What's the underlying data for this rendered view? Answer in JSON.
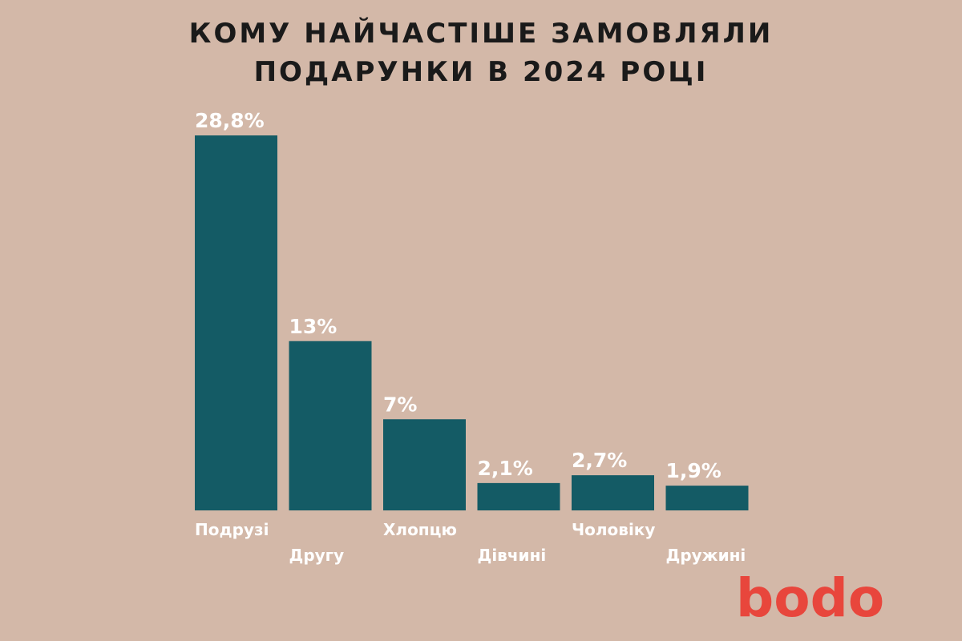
{
  "title_lines": [
    "КОМУ НАЙЧАСТІШЕ ЗАМОВЛЯЛИ",
    "ПОДАРУНКИ В 2024 РОЦІ"
  ],
  "logo": "bodo",
  "colors": {
    "background": "#d3b8a8",
    "bar": "#145b65",
    "label_text": "#ffffff",
    "title_text": "#1a1a1a",
    "logo": "#e8463c"
  },
  "chart_data": {
    "type": "bar",
    "title": "КОМУ НАЙЧАСТІШЕ ЗАМОВЛЯЛИ ПОДАРУНКИ В 2024 РОЦІ",
    "categories": [
      "Подрузі",
      "Другу",
      "Хлопцю",
      "Дівчині",
      "Чоловіку",
      "Дружині"
    ],
    "values": [
      28.8,
      13,
      7,
      2.1,
      2.7,
      1.9
    ],
    "value_labels": [
      "28,8%",
      "13%",
      "7%",
      "2,1%",
      "2,7%",
      "1,9%"
    ],
    "unit": "%",
    "grid": false,
    "legend": "none",
    "y_axis_visible": false
  }
}
